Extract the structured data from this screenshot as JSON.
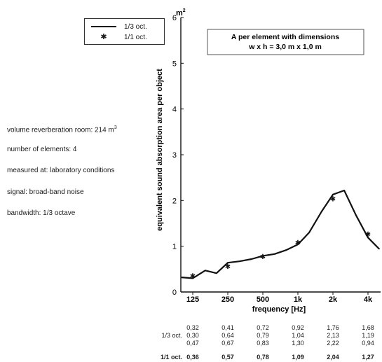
{
  "legend": {
    "line_label": "1/3 oct.",
    "star_label": "1/1 oct."
  },
  "info": {
    "volume_prefix": "volume reverberation room: 214 m",
    "volume_sup": "3",
    "elements": "number of elements: 4",
    "measured": "measured at: laboratory conditions",
    "signal": "signal: broad-band noise",
    "bandwidth": "bandwidth: 1/3 octave"
  },
  "annotation": {
    "line1": "A per element with dimensions",
    "line2": "w x h = 3,0 m x 1,0 m"
  },
  "unit": {
    "m": "m",
    "sup": "2"
  },
  "table": {
    "third_label": "1/3 oct.",
    "octave_label": "1/1 oct.",
    "third_rows": [
      [
        "0,32",
        "0,41",
        "0,72",
        "0,92",
        "1,76",
        "1,68"
      ],
      [
        "0,30",
        "0,64",
        "0,79",
        "1,04",
        "2,13",
        "1,19"
      ],
      [
        "0,47",
        "0,67",
        "0,83",
        "1,30",
        "2,22",
        "0,94"
      ]
    ],
    "octave_row": [
      "0,36",
      "0,57",
      "0,78",
      "1,09",
      "2,04",
      "1,27"
    ]
  },
  "chart_data": {
    "type": "line",
    "title": "",
    "xlabel": "frequency [Hz]",
    "ylabel": "equivalent sound absorption area per object",
    "yunit": "m²",
    "ylim": [
      0,
      6
    ],
    "yticks": [
      "0",
      "1",
      "2",
      "3",
      "4",
      "5",
      "6"
    ],
    "xscale": "log",
    "xtick_labels": [
      "125",
      "250",
      "500",
      "1k",
      "2k",
      "4k"
    ],
    "grid": false,
    "legend_position": "top-left",
    "series": [
      {
        "name": "1/3 oct.",
        "style": "line",
        "x": [
          100,
          125,
          160,
          200,
          250,
          315,
          400,
          500,
          630,
          800,
          1000,
          1250,
          1600,
          2000,
          2500,
          3150,
          4000,
          5000
        ],
        "y": [
          0.32,
          0.3,
          0.47,
          0.41,
          0.64,
          0.67,
          0.72,
          0.79,
          0.83,
          0.92,
          1.04,
          1.3,
          1.76,
          2.13,
          2.22,
          1.68,
          1.19,
          0.94
        ]
      },
      {
        "name": "1/1 oct.",
        "style": "star",
        "x": [
          125,
          250,
          500,
          1000,
          2000,
          4000
        ],
        "y": [
          0.36,
          0.57,
          0.78,
          1.09,
          2.04,
          1.27
        ]
      }
    ]
  }
}
